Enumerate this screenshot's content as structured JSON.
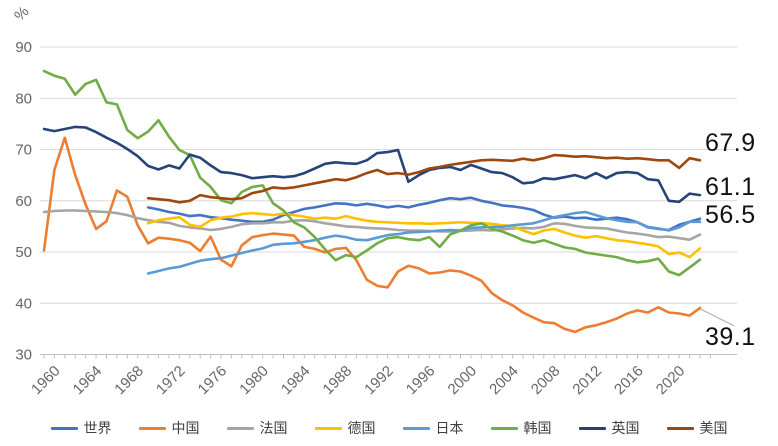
{
  "chart_data": {
    "type": "line",
    "title": "",
    "unit_label": "%",
    "grid": "horizontal",
    "legend_position": "bottom",
    "colors": {
      "axis_text": "#666666",
      "gridline": "#D9D9D9",
      "axis_line": "#BFBFBF",
      "end_label_text": "#111111",
      "leader_line": "#A6A6A6",
      "background": "#FFFFFF"
    },
    "y_axis": {
      "min": 30,
      "max": 90,
      "step": 10,
      "tick_labels": [
        "30",
        "40",
        "50",
        "60",
        "70",
        "80",
        "90"
      ]
    },
    "x_axis": {
      "start": 1960,
      "end": 2023,
      "label_step": 4,
      "tick_labels": [
        "1960",
        "1964",
        "1968",
        "1972",
        "1976",
        "1980",
        "1984",
        "1988",
        "1992",
        "1996",
        "2000",
        "2004",
        "2008",
        "2012",
        "2016",
        "2020"
      ]
    },
    "series": [
      {
        "key": "world",
        "name": "世界",
        "color": "#4472C4",
        "start_year": 1970,
        "values": [
          58.7,
          58.3,
          57.8,
          57.5,
          57.0,
          57.2,
          56.8,
          56.6,
          56.3,
          56.1,
          55.9,
          55.9,
          56.3,
          57.2,
          57.8,
          58.4,
          58.7,
          59.1,
          59.5,
          59.4,
          59.1,
          59.4,
          59.1,
          58.7,
          59.0,
          58.7,
          59.2,
          59.6,
          60.1,
          60.5,
          60.3,
          60.6,
          60.0,
          59.6,
          59.1,
          58.9,
          58.6,
          58.2,
          57.3,
          56.7,
          56.9,
          56.6,
          56.7,
          56.3,
          56.5,
          56.7,
          56.4,
          55.8,
          54.8,
          54.5,
          54.3,
          55.3,
          55.9,
          56.5
        ]
      },
      {
        "key": "china",
        "name": "中国",
        "color": "#ED7D31",
        "start_year": 1960,
        "values": [
          50.3,
          66.0,
          72.3,
          65.0,
          59.2,
          54.5,
          56.0,
          62.0,
          60.8,
          55.2,
          51.7,
          52.8,
          52.6,
          52.3,
          51.8,
          50.2,
          53.0,
          48.5,
          47.2,
          51.3,
          52.9,
          53.3,
          53.6,
          53.4,
          53.2,
          51.0,
          50.6,
          49.9,
          50.6,
          50.8,
          48.4,
          44.6,
          43.4,
          43.1,
          46.2,
          47.3,
          46.8,
          45.8,
          46.0,
          46.4,
          46.2,
          45.4,
          44.4,
          42.0,
          40.6,
          39.6,
          38.2,
          37.2,
          36.3,
          36.1,
          35.0,
          34.4,
          35.3,
          35.7,
          36.3,
          37.0,
          38.0,
          38.6,
          38.2,
          39.2,
          38.2,
          38.0,
          37.6,
          39.1
        ]
      },
      {
        "key": "france",
        "name": "法国",
        "color": "#A5A5A5",
        "start_year": 1960,
        "values": [
          57.8,
          58.0,
          58.1,
          58.1,
          58.0,
          57.9,
          57.8,
          57.6,
          57.2,
          56.6,
          56.2,
          55.9,
          55.7,
          55.1,
          54.8,
          54.6,
          54.3,
          54.5,
          54.9,
          55.4,
          55.6,
          55.6,
          55.8,
          55.8,
          56.1,
          56.2,
          56.0,
          55.6,
          55.3,
          55.0,
          54.9,
          54.7,
          54.6,
          54.5,
          54.3,
          54.2,
          54.2,
          54.1,
          54.0,
          54.0,
          54.1,
          54.2,
          54.3,
          54.2,
          54.4,
          54.6,
          54.7,
          54.6,
          54.9,
          55.6,
          55.5,
          55.1,
          54.8,
          54.7,
          54.6,
          54.2,
          53.8,
          53.6,
          53.3,
          52.9,
          53.0,
          52.7,
          52.4,
          53.4
        ]
      },
      {
        "key": "germany",
        "name": "德国",
        "color": "#FFC000",
        "start_year": 1970,
        "values": [
          55.6,
          56.2,
          56.5,
          56.8,
          55.3,
          54.9,
          56.2,
          56.7,
          56.9,
          57.4,
          57.6,
          57.4,
          57.2,
          57.5,
          57.2,
          56.9,
          56.5,
          56.7,
          56.5,
          57.0,
          56.5,
          56.1,
          55.9,
          55.8,
          55.7,
          55.6,
          55.6,
          55.5,
          55.6,
          55.7,
          55.8,
          55.7,
          55.6,
          55.5,
          55.2,
          55.1,
          54.2,
          53.5,
          54.2,
          54.5,
          53.8,
          53.2,
          52.8,
          53.1,
          52.7,
          52.3,
          52.1,
          51.8,
          51.5,
          51.1,
          49.6,
          49.9,
          49.0,
          50.7
        ]
      },
      {
        "key": "japan",
        "name": "日本",
        "color": "#5B9BD5",
        "start_year": 1970,
        "values": [
          45.8,
          46.3,
          46.8,
          47.1,
          47.7,
          48.3,
          48.6,
          48.8,
          49.3,
          49.8,
          50.3,
          50.7,
          51.4,
          51.6,
          51.7,
          52.0,
          52.3,
          52.8,
          53.2,
          52.9,
          52.4,
          52.3,
          52.8,
          53.3,
          53.5,
          53.8,
          53.9,
          54.0,
          54.2,
          54.3,
          54.2,
          54.7,
          54.8,
          54.9,
          54.9,
          55.2,
          55.4,
          55.6,
          56.2,
          56.8,
          57.2,
          57.6,
          57.8,
          57.2,
          56.6,
          56.2,
          55.9,
          55.8,
          54.9,
          54.6,
          54.2,
          54.8,
          55.9,
          55.9
        ]
      },
      {
        "key": "korea",
        "name": "韩国",
        "color": "#70AD47",
        "start_year": 1960,
        "values": [
          85.3,
          84.4,
          83.8,
          80.7,
          82.8,
          83.6,
          79.2,
          78.8,
          73.8,
          72.2,
          73.5,
          75.7,
          72.5,
          69.9,
          68.9,
          64.5,
          62.7,
          60.1,
          59.5,
          61.7,
          62.7,
          63.0,
          59.5,
          58.1,
          55.8,
          54.8,
          52.9,
          50.5,
          48.4,
          49.4,
          49.0,
          50.3,
          51.7,
          52.7,
          52.9,
          52.5,
          52.3,
          52.9,
          51.0,
          53.4,
          54.2,
          55.2,
          55.6,
          54.5,
          54.0,
          53.2,
          52.3,
          51.8,
          52.3,
          51.6,
          50.9,
          50.6,
          49.9,
          49.6,
          49.3,
          49.0,
          48.4,
          48.0,
          48.2,
          48.7,
          46.2,
          45.5,
          47.0,
          48.5
        ]
      },
      {
        "key": "uk",
        "name": "英国",
        "color": "#264478",
        "start_year": 1960,
        "values": [
          74.0,
          73.6,
          74.0,
          74.4,
          74.3,
          73.4,
          72.3,
          71.3,
          70.1,
          68.7,
          66.8,
          66.1,
          66.9,
          66.3,
          69.0,
          68.4,
          66.9,
          65.6,
          65.4,
          65.0,
          64.4,
          64.6,
          64.8,
          64.6,
          64.8,
          65.4,
          66.3,
          67.2,
          67.5,
          67.3,
          67.2,
          67.9,
          69.3,
          69.5,
          69.9,
          63.7,
          65.0,
          66.0,
          66.4,
          66.6,
          66.0,
          67.0,
          66.3,
          65.6,
          65.4,
          64.6,
          63.4,
          63.6,
          64.4,
          64.2,
          64.6,
          65.0,
          64.4,
          65.4,
          64.4,
          65.4,
          65.6,
          65.4,
          64.2,
          64.0,
          60.0,
          59.8,
          61.4,
          61.1
        ]
      },
      {
        "key": "us",
        "name": "美国",
        "color": "#9E480E",
        "start_year": 1970,
        "values": [
          60.5,
          60.3,
          60.1,
          59.7,
          60.0,
          61.1,
          60.7,
          60.5,
          60.3,
          60.5,
          61.5,
          61.9,
          62.6,
          62.4,
          62.6,
          63.0,
          63.4,
          63.8,
          64.2,
          64.0,
          64.6,
          65.4,
          66.0,
          65.2,
          65.4,
          65.1,
          65.6,
          66.3,
          66.6,
          67.0,
          67.3,
          67.6,
          67.9,
          68.0,
          67.9,
          67.8,
          68.2,
          67.9,
          68.3,
          68.9,
          68.8,
          68.6,
          68.7,
          68.5,
          68.3,
          68.4,
          68.2,
          68.3,
          68.1,
          67.9,
          67.9,
          66.4,
          68.3,
          67.9
        ]
      }
    ],
    "end_labels": [
      {
        "series": "美国",
        "text": "67.9",
        "value": 67.9
      },
      {
        "series": "英国",
        "text": "61.1",
        "value": 61.1
      },
      {
        "series": "世界",
        "text": "56.5",
        "value": 56.5
      },
      {
        "series": "中国",
        "text": "39.1",
        "value": 39.1
      }
    ]
  }
}
